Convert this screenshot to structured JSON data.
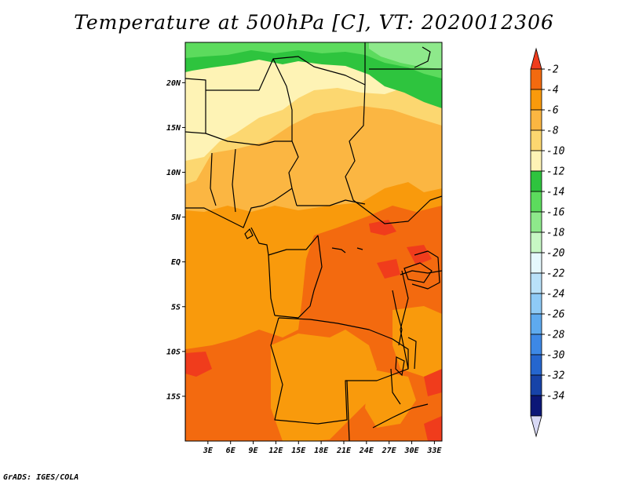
{
  "title": "Temperature at 500hPa [C], VT: 2020012306",
  "credit": "GrADS: IGES/COLA",
  "map": {
    "lon_range": [
      0,
      34
    ],
    "lat_range": [
      -20,
      24.5
    ],
    "lon_ticks": [
      {
        "value": 3,
        "label": "3E"
      },
      {
        "value": 6,
        "label": "6E"
      },
      {
        "value": 9,
        "label": "9E"
      },
      {
        "value": 12,
        "label": "12E"
      },
      {
        "value": 15,
        "label": "15E"
      },
      {
        "value": 18,
        "label": "18E"
      },
      {
        "value": 21,
        "label": "21E"
      },
      {
        "value": 24,
        "label": "24E"
      },
      {
        "value": 27,
        "label": "27E"
      },
      {
        "value": 30,
        "label": "30E"
      },
      {
        "value": 33,
        "label": "33E"
      }
    ],
    "lat_ticks": [
      {
        "value": 20,
        "label": "20N"
      },
      {
        "value": 15,
        "label": "15N"
      },
      {
        "value": 10,
        "label": "10N"
      },
      {
        "value": 5,
        "label": "5N"
      },
      {
        "value": 0,
        "label": "EQ"
      },
      {
        "value": -5,
        "label": "5S"
      },
      {
        "value": -10,
        "label": "10S"
      },
      {
        "value": -15,
        "label": "15S"
      }
    ]
  },
  "colorbar": {
    "labels": [
      "-2",
      "-4",
      "-6",
      "-8",
      "-10",
      "-12",
      "-14",
      "-16",
      "-18",
      "-20",
      "-22",
      "-24",
      "-26",
      "-28",
      "-30",
      "-32",
      "-34"
    ],
    "colors": [
      "#f03c1c",
      "#f36a0f",
      "#f99a0c",
      "#fbb642",
      "#fcd770",
      "#fef3b5",
      "#2ec43e",
      "#5cdb5d",
      "#8ee98b",
      "#c7f7c4",
      "#e5f8fd",
      "#b9e1f9",
      "#8ecaf6",
      "#5eaaef",
      "#3d88e6",
      "#2566cf",
      "#1743a8",
      "#0c1777",
      "#d8d9f5"
    ]
  },
  "regions": {
    "green_dark": "#2ec43e",
    "green_mid": "#5cdb5d",
    "green_light": "#8ee98b",
    "cream": "#fef3b5",
    "yellow": "#fcd770",
    "light_orange": "#fbb642",
    "orange": "#f99a0c",
    "dark_orange": "#f36a0f",
    "red": "#f03c1c"
  }
}
